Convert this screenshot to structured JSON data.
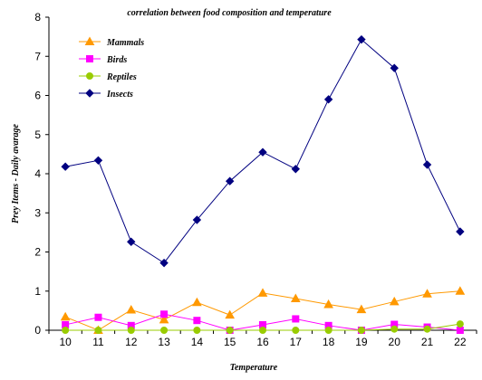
{
  "chart_data": {
    "type": "line",
    "title": "correlation between food composition and temperature",
    "xlabel": "Temperature",
    "ylabel": "Prey Items - Daily avarage",
    "x": [
      10,
      11,
      12,
      13,
      14,
      15,
      16,
      17,
      18,
      19,
      20,
      21,
      22
    ],
    "ylim": [
      0,
      8
    ],
    "yticks": [
      0,
      1,
      2,
      3,
      4,
      5,
      6,
      7,
      8
    ],
    "grid": false,
    "legend_position": "top-left",
    "series": [
      {
        "name": "Mammals",
        "color": "#ff9900",
        "marker": "triangle",
        "values": [
          0.34,
          0.0,
          0.52,
          0.27,
          0.71,
          0.39,
          0.95,
          0.81,
          0.66,
          0.53,
          0.73,
          0.93,
          1.0
        ]
      },
      {
        "name": "Birds",
        "color": "#ff00ff",
        "marker": "square",
        "values": [
          0.14,
          0.33,
          0.12,
          0.41,
          0.25,
          0.0,
          0.14,
          0.29,
          0.12,
          0.0,
          0.15,
          0.08,
          0.0
        ]
      },
      {
        "name": "Reptiles",
        "color": "#99cc00",
        "marker": "circle",
        "values": [
          0.0,
          0.0,
          0.0,
          0.0,
          0.0,
          0.0,
          0.0,
          0.0,
          0.0,
          0.0,
          0.03,
          0.03,
          0.16
        ]
      },
      {
        "name": "Insects",
        "color": "#000080",
        "marker": "diamond",
        "values": [
          4.18,
          4.34,
          2.26,
          1.72,
          2.82,
          3.81,
          4.55,
          4.12,
          5.9,
          7.43,
          6.7,
          4.23,
          2.52
        ]
      }
    ]
  }
}
